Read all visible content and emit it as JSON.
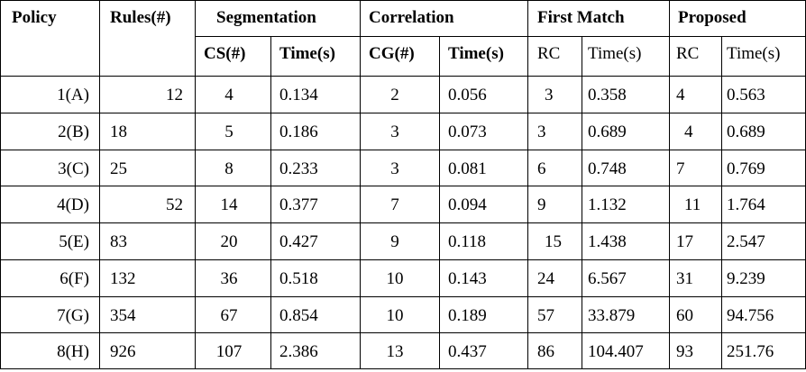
{
  "table": {
    "headers": {
      "policy": "Policy",
      "rules": "Rules(#)",
      "segmentation": "Segmentation",
      "correlation": "Correlation",
      "first_match": "First Match",
      "proposed": "Proposed"
    },
    "subheaders": {
      "cs": "CS(#)",
      "seg_time": "Time(s)",
      "cg": "CG(#)",
      "cor_time": "Time(s)",
      "fm_rc": "RC",
      "fm_time": "Time(s)",
      "pr_rc": "RC",
      "pr_time": "Time(s)"
    },
    "rows": [
      [
        "1(A)",
        "12",
        "4",
        "0.134",
        "2",
        "0.056",
        "3",
        "0.358",
        "4",
        "0.563"
      ],
      [
        "2(B)",
        "18",
        "5",
        "0.186",
        "3",
        "0.073",
        "3",
        "0.689",
        "4",
        "0.689"
      ],
      [
        "3(C)",
        "25",
        "8",
        "0.233",
        "3",
        "0.081",
        "6",
        "0.748",
        "7",
        "0.769"
      ],
      [
        "4(D)",
        "52",
        "14",
        "0.377",
        "7",
        "0.094",
        "9",
        "1.132",
        "11",
        "1.764"
      ],
      [
        "5(E)",
        "83",
        "20",
        "0.427",
        "9",
        "0.118",
        "15",
        "1.438",
        "17",
        "2.547"
      ],
      [
        "6(F)",
        "132",
        "36",
        "0.518",
        "10",
        "0.143",
        "24",
        "6.567",
        "31",
        "9.239"
      ],
      [
        "7(G)",
        "354",
        "67",
        "0.854",
        "10",
        "0.189",
        "57",
        "33.879",
        "60",
        "94.756"
      ],
      [
        "8(H)",
        "926",
        "107",
        "2.386",
        "13",
        "0.437",
        "86",
        "104.407",
        "93",
        "251.76"
      ]
    ]
  }
}
